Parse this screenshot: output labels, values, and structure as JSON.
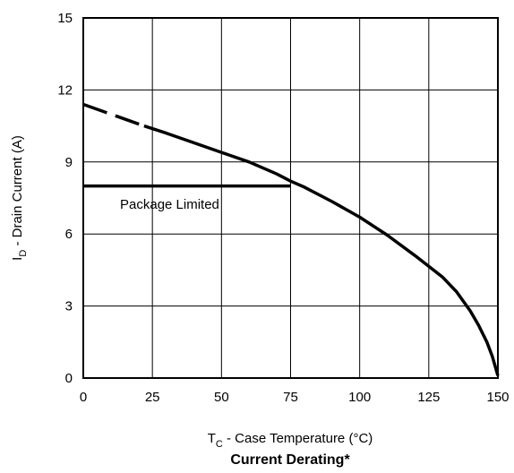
{
  "chart_data": {
    "type": "line",
    "title": "Current Derating*",
    "xlabel": {
      "main": "T",
      "sub": "C",
      "rest": " - Case Temperature (°C)"
    },
    "ylabel": {
      "main": "I",
      "sub": "D",
      "rest": " - Drain Current (A)"
    },
    "xlim": [
      0,
      150
    ],
    "ylim": [
      0,
      15
    ],
    "xticks": [
      "0",
      "25",
      "50",
      "75",
      "100",
      "125",
      "150"
    ],
    "yticks": [
      "0",
      "3",
      "6",
      "9",
      "12",
      "15"
    ],
    "grid": true,
    "annotations": [
      {
        "text": "Package Limited"
      }
    ],
    "series": [
      {
        "style": "dashed",
        "x": [
          0,
          22
        ],
        "y": [
          11.4,
          10.5
        ]
      },
      {
        "style": "solid",
        "x": [
          22,
          30,
          40,
          50,
          60,
          70,
          75,
          80,
          90,
          100,
          110,
          120,
          130,
          135,
          140,
          143,
          146,
          148,
          149,
          150
        ],
        "y": [
          10.5,
          10.2,
          9.8,
          9.4,
          9.0,
          8.5,
          8.2,
          7.95,
          7.35,
          6.7,
          5.95,
          5.1,
          4.2,
          3.6,
          2.8,
          2.2,
          1.5,
          0.9,
          0.5,
          0.1
        ]
      },
      {
        "style": "solid",
        "x": [
          0,
          75
        ],
        "y": [
          8.0,
          8.0
        ]
      }
    ]
  }
}
